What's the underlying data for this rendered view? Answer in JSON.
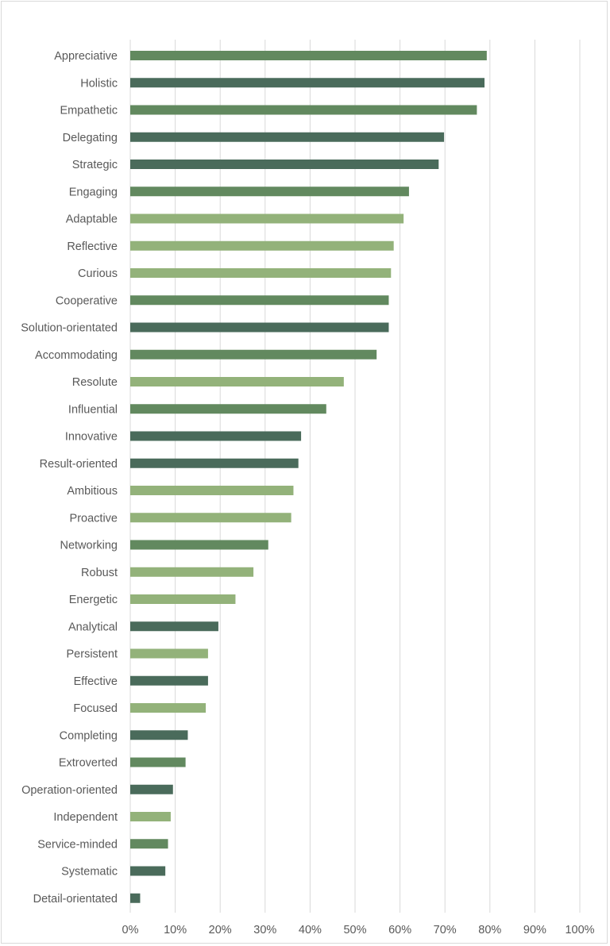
{
  "chart_data": {
    "type": "bar",
    "orientation": "horizontal",
    "title": "",
    "xlabel": "",
    "ylabel": "",
    "xlim": [
      0,
      100
    ],
    "grid": true,
    "legend": "none",
    "tick_labels": [
      "0%",
      "10%",
      "20%",
      "30%",
      "40%",
      "50%",
      "60%",
      "70%",
      "80%",
      "90%",
      "100%"
    ],
    "colors": {
      "dark": "#4a6b5b",
      "medium": "#62895f",
      "light": "#93b27a"
    },
    "categories": [
      "Appreciative",
      "Holistic",
      "Empathetic",
      "Delegating",
      "Strategic",
      "Engaging",
      "Adaptable",
      "Reflective",
      "Curious",
      "Cooperative",
      "Solution-orientated",
      "Accommodating",
      "Resolute",
      "Influential",
      "Innovative",
      "Result-oriented",
      "Ambitious",
      "Proactive",
      "Networking",
      "Robust",
      "Energetic",
      "Analytical",
      "Persistent",
      "Effective",
      "Focused",
      "Completing",
      "Extroverted",
      "Operation-oriented",
      "Independent",
      "Service-minded",
      "Systematic",
      "Detail-orientated"
    ],
    "values": [
      79.3,
      78.8,
      77.1,
      69.8,
      68.6,
      62.0,
      60.8,
      58.6,
      58.0,
      57.5,
      57.5,
      54.8,
      47.5,
      43.6,
      38.0,
      37.4,
      36.3,
      35.8,
      30.7,
      27.4,
      23.4,
      19.6,
      17.3,
      17.3,
      16.8,
      12.8,
      12.3,
      9.5,
      9.0,
      8.4,
      7.8,
      2.2
    ],
    "bar_colors": [
      "medium",
      "dark",
      "medium",
      "dark",
      "dark",
      "medium",
      "light",
      "light",
      "light",
      "medium",
      "dark",
      "medium",
      "light",
      "medium",
      "dark",
      "dark",
      "light",
      "light",
      "medium",
      "light",
      "light",
      "dark",
      "light",
      "dark",
      "light",
      "dark",
      "medium",
      "dark",
      "light",
      "medium",
      "dark",
      "dark"
    ]
  }
}
